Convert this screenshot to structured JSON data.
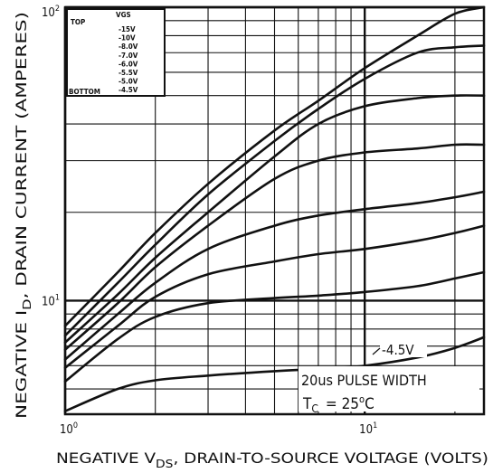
{
  "chart_data": {
    "type": "line",
    "title": "",
    "xlabel_parts": [
      "NEGATIVE V",
      "DS",
      ", DRAIN-TO-SOURCE VOLTAGE (VOLTS)"
    ],
    "ylabel_parts": [
      "NEGATIVE I",
      "D",
      ", DRAIN CURRENT (AMPERES)"
    ],
    "x_scale": "log",
    "y_scale": "log",
    "xlim": [
      1,
      25
    ],
    "ylim": [
      4.1,
      100
    ],
    "x_ticks": [
      {
        "value": 1,
        "base": "10",
        "exp": "0"
      },
      {
        "value": 10,
        "base": "10",
        "exp": "1"
      }
    ],
    "y_ticks": [
      {
        "value": 10,
        "base": "10",
        "exp": "1"
      },
      {
        "value": 100,
        "base": "10",
        "exp": "2"
      }
    ],
    "grid": true,
    "legend": {
      "position": "top-left",
      "heading": "VGS",
      "top_label": "TOP",
      "bottom_label": "BOTTOM",
      "entries": [
        "-15V",
        "-10V",
        "-8.0V",
        "-7.0V",
        "-6.0V",
        "-5.5V",
        "-5.0V",
        "-4.5V"
      ]
    },
    "annotations": {
      "curve_label": "-4.5V",
      "note_line1": "20us PULSE WIDTH",
      "note_tc_main": "T",
      "note_tc_sub": "C",
      "note_tc_value": "= 25",
      "note_tc_sup": "o",
      "note_tc_unit": "C"
    },
    "series": [
      {
        "vgs": "-15V",
        "points": [
          [
            1,
            8.2
          ],
          [
            1.5,
            12.5
          ],
          [
            2,
            17
          ],
          [
            3,
            25
          ],
          [
            5,
            38
          ],
          [
            7,
            48
          ],
          [
            10,
            62
          ],
          [
            15,
            80
          ],
          [
            20,
            95
          ],
          [
            25,
            100
          ]
        ]
      },
      {
        "vgs": "-10V",
        "points": [
          [
            1,
            7.6
          ],
          [
            1.5,
            11.5
          ],
          [
            2,
            15.5
          ],
          [
            3,
            23
          ],
          [
            5,
            35
          ],
          [
            7,
            45
          ],
          [
            10,
            57
          ],
          [
            15,
            70
          ],
          [
            20,
            73
          ],
          [
            25,
            74
          ]
        ]
      },
      {
        "vgs": "-8.0V",
        "points": [
          [
            1,
            7.2
          ],
          [
            1.5,
            10.5
          ],
          [
            2,
            14
          ],
          [
            3,
            20
          ],
          [
            5,
            31
          ],
          [
            7,
            40
          ],
          [
            10,
            46
          ],
          [
            15,
            49
          ],
          [
            20,
            50
          ],
          [
            25,
            50
          ]
        ]
      },
      {
        "vgs": "-7.0V",
        "points": [
          [
            1,
            6.8
          ],
          [
            1.5,
            9.8
          ],
          [
            2,
            13
          ],
          [
            3,
            18
          ],
          [
            5,
            26
          ],
          [
            7,
            30
          ],
          [
            10,
            32
          ],
          [
            15,
            33
          ],
          [
            20,
            34
          ],
          [
            25,
            34
          ]
        ]
      },
      {
        "vgs": "-6.0V",
        "points": [
          [
            1,
            6.3
          ],
          [
            1.5,
            9
          ],
          [
            2,
            11.5
          ],
          [
            3,
            15
          ],
          [
            5,
            18
          ],
          [
            7,
            19.5
          ],
          [
            10,
            20.5
          ],
          [
            15,
            21.5
          ],
          [
            20,
            22.5
          ],
          [
            25,
            23.5
          ]
        ]
      },
      {
        "vgs": "-5.5V",
        "points": [
          [
            1,
            5.9
          ],
          [
            1.5,
            8.2
          ],
          [
            2,
            10.3
          ],
          [
            3,
            12.3
          ],
          [
            5,
            13.6
          ],
          [
            7,
            14.4
          ],
          [
            10,
            15
          ],
          [
            15,
            16
          ],
          [
            20,
            17
          ],
          [
            25,
            18
          ]
        ]
      },
      {
        "vgs": "-5.0V",
        "points": [
          [
            1,
            5.3
          ],
          [
            1.5,
            7.4
          ],
          [
            2,
            8.8
          ],
          [
            3,
            9.8
          ],
          [
            5,
            10.2
          ],
          [
            7,
            10.4
          ],
          [
            10,
            10.7
          ],
          [
            15,
            11.2
          ],
          [
            20,
            11.9
          ],
          [
            25,
            12.5
          ]
        ]
      },
      {
        "vgs": "-4.5V",
        "points": [
          [
            1,
            4.2
          ],
          [
            1.5,
            5
          ],
          [
            2,
            5.35
          ],
          [
            3,
            5.55
          ],
          [
            5,
            5.75
          ],
          [
            7,
            5.85
          ],
          [
            10,
            6.0
          ],
          [
            15,
            6.4
          ],
          [
            20,
            6.9
          ],
          [
            25,
            7.5
          ]
        ]
      }
    ]
  }
}
